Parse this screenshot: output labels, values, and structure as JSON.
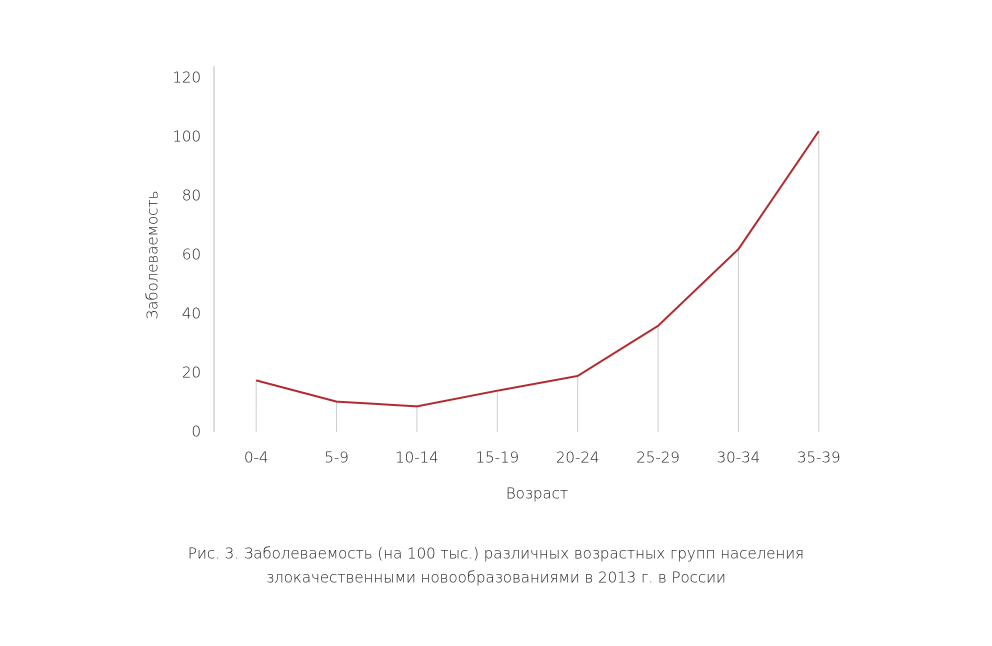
{
  "chart_data": {
    "type": "line",
    "categories": [
      "0-4",
      "5-9",
      "10-14",
      "15-19",
      "20-24",
      "25-29",
      "30-34",
      "35-39"
    ],
    "series": [
      {
        "name": "Заболеваемость",
        "color": "#b22a2e",
        "values": [
          17.5,
          10.3,
          8.7,
          14,
          19,
          36,
          62,
          102
        ]
      }
    ],
    "ylim": [
      0,
      120
    ],
    "yticks": [
      0,
      20,
      40,
      60,
      80,
      100,
      120
    ],
    "y_label": "Заболеваемость",
    "x_label": "Возраст",
    "drop_lines": true,
    "caption": [
      "Рис. 3. Заболеваемость (на 100 тыс.) различных возрастных групп населения",
      "злокачественными новообразованиями в 2013 г. в России"
    ]
  }
}
